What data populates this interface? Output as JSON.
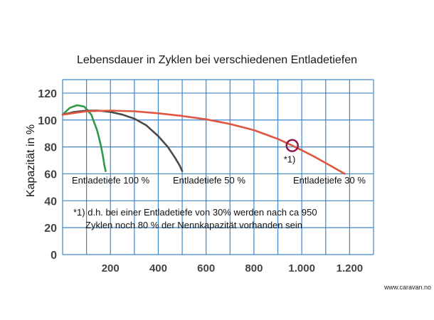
{
  "chart_data": {
    "type": "line",
    "title": "Lebensdauer in Zyklen bei verschiedenen Entladetiefen",
    "ylabel": "Kapazität in %",
    "xlabel": "",
    "xlim": [
      0,
      1300
    ],
    "ylim": [
      0,
      130
    ],
    "x_ticks": [
      200,
      400,
      600,
      800,
      1000,
      1200
    ],
    "x_tick_labels": [
      "200",
      "400",
      "600",
      "800",
      "1.000",
      "1.200"
    ],
    "y_ticks": [
      0,
      20,
      40,
      60,
      80,
      100,
      120
    ],
    "y_tick_labels": [
      "0",
      "20",
      "40",
      "60",
      "80",
      "100",
      "120"
    ],
    "grid": true,
    "series": [
      {
        "name": "Entladetiefe 100 %",
        "color": "#2e9a47",
        "x": [
          0,
          30,
          60,
          90,
          120,
          145,
          160,
          170,
          175,
          180
        ],
        "y": [
          104,
          109,
          111,
          110,
          104,
          92,
          81,
          72,
          66,
          62
        ]
      },
      {
        "name": "Entladetiefe 50 %",
        "color": "#4a4a4a",
        "x": [
          0,
          50,
          100,
          150,
          200,
          250,
          300,
          350,
          400,
          440,
          470,
          490,
          500
        ],
        "y": [
          104,
          106,
          107,
          107,
          106,
          104,
          101,
          96,
          88,
          80,
          72,
          66,
          62
        ]
      },
      {
        "name": "Entladetiefe 30 %",
        "color": "#e0553e",
        "x": [
          0,
          100,
          200,
          300,
          400,
          500,
          600,
          700,
          800,
          900,
          960,
          1000,
          1050,
          1100,
          1150,
          1180
        ],
        "y": [
          104,
          106.5,
          107,
          106.5,
          105,
          103,
          100.5,
          97,
          92.5,
          86,
          81,
          77.5,
          73,
          68,
          63,
          60
        ]
      }
    ],
    "marker": {
      "x": 960,
      "y": 81,
      "label": "*1)",
      "color": "#8b1a4a"
    },
    "annotation": [
      "*1) d.h. bei einer Entladetiefe von 30% werden nach ca 950",
      "Zyklen noch 80 % der Nennkapazität vorhanden sein"
    ],
    "credit": "www.caravan.no"
  }
}
